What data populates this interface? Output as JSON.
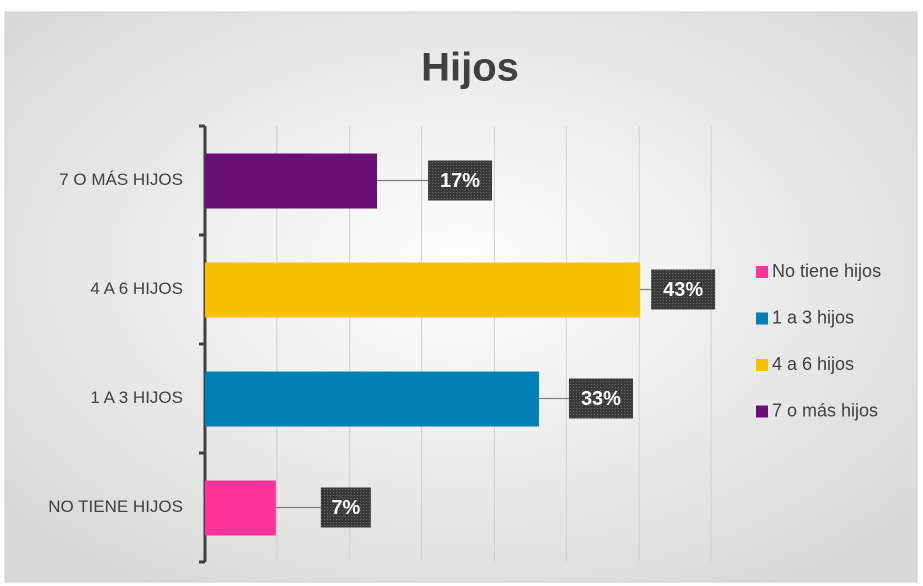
{
  "chart_data": {
    "type": "hbar",
    "title": "Hijos",
    "categories": [
      "NO TIENE HIJOS",
      "1 A 3 HIJOS",
      "4 A 6 HIJOS",
      "7 O MÁS HIJOS"
    ],
    "values": [
      7,
      33,
      43,
      17
    ],
    "value_labels": [
      "7%",
      "33%",
      "43%",
      "17%"
    ],
    "colors": [
      "#ff3399",
      "#0080b4",
      "#f5c100",
      "#6b1077"
    ],
    "legend": [
      "No tiene hijos",
      "1 a 3 hijos",
      "4 a 6 hijos",
      "7 o más hijos"
    ],
    "xlim": [
      0,
      50
    ],
    "xticks": [
      0,
      7.1,
      14.3,
      21.4,
      28.6,
      35.7,
      42.9,
      50
    ],
    "grid": true
  }
}
